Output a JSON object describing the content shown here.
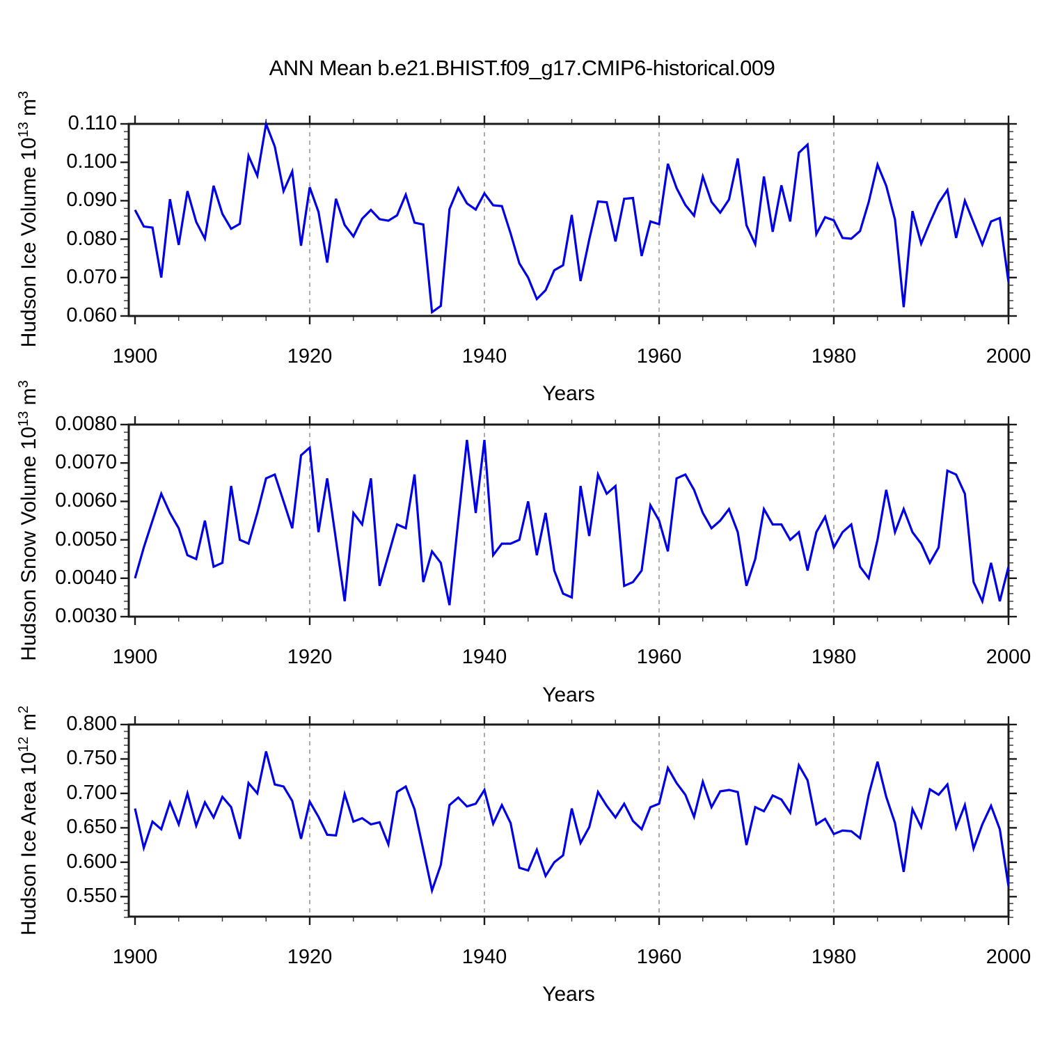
{
  "title": "ANN Mean b.e21.BHIST.f09_g17.CMIP6-historical.009",
  "colors": {
    "line": "#0000e6",
    "axis": "#1a1a1a",
    "grid": "#888888",
    "minor_tick": "#333333"
  },
  "x_tick_years": [
    1900,
    1920,
    1940,
    1960,
    1980,
    2000
  ],
  "x_tick_labels": [
    "1900",
    "1920",
    "1940",
    "1960",
    "1980",
    "2000"
  ],
  "years": [
    1900,
    1901,
    1902,
    1903,
    1904,
    1905,
    1906,
    1907,
    1908,
    1909,
    1910,
    1911,
    1912,
    1913,
    1914,
    1915,
    1916,
    1917,
    1918,
    1919,
    1920,
    1921,
    1922,
    1923,
    1924,
    1925,
    1926,
    1927,
    1928,
    1929,
    1930,
    1931,
    1932,
    1933,
    1934,
    1935,
    1936,
    1937,
    1938,
    1939,
    1940,
    1941,
    1942,
    1943,
    1944,
    1945,
    1946,
    1947,
    1948,
    1949,
    1950,
    1951,
    1952,
    1953,
    1954,
    1955,
    1956,
    1957,
    1958,
    1959,
    1960,
    1961,
    1962,
    1963,
    1964,
    1965,
    1966,
    1967,
    1968,
    1969,
    1970,
    1971,
    1972,
    1973,
    1974,
    1975,
    1976,
    1977,
    1978,
    1979,
    1980,
    1981,
    1982,
    1983,
    1984,
    1985,
    1986,
    1987,
    1988,
    1989,
    1990,
    1991,
    1992,
    1993,
    1994,
    1995,
    1996,
    1997,
    1998,
    1999,
    2000
  ],
  "chart_data": [
    {
      "type": "line",
      "title": "Hudson Ice Volume",
      "ylabel_parts": [
        {
          "t": "Hudson Ice Volume 10",
          "sup": false
        },
        {
          "t": "13",
          "sup": true
        },
        {
          "t": " m",
          "sup": false
        },
        {
          "t": "3",
          "sup": true
        }
      ],
      "xlabel": "Years",
      "xlim": [
        1899.3,
        2000
      ],
      "ylim": [
        0.06,
        0.11
      ],
      "ytick_values": [
        0.11,
        0.1,
        0.09,
        0.08,
        0.07,
        0.06
      ],
      "ytick_labels": [
        "0.110",
        "0.100",
        "0.090",
        "0.080",
        "0.070",
        "0.060"
      ],
      "ytick_minor_step": 0.002,
      "grid_x": [
        1920,
        1940,
        1960,
        1980
      ],
      "grid_on": false,
      "legend": "none",
      "values": [
        0.0876,
        0.0833,
        0.083,
        0.07,
        0.0904,
        0.0785,
        0.0925,
        0.0845,
        0.0801,
        0.0939,
        0.0866,
        0.0827,
        0.084,
        0.1017,
        0.0965,
        0.11,
        0.1041,
        0.0925,
        0.0976,
        0.0783,
        0.0935,
        0.0871,
        0.0739,
        0.0905,
        0.0837,
        0.0807,
        0.0853,
        0.0876,
        0.0852,
        0.0848,
        0.0862,
        0.0916,
        0.0843,
        0.0838,
        0.061,
        0.0626,
        0.0878,
        0.0933,
        0.0893,
        0.0877,
        0.0919,
        0.0888,
        0.0886,
        0.0815,
        0.0737,
        0.07,
        0.0644,
        0.0667,
        0.0719,
        0.0732,
        0.0863,
        0.0691,
        0.0799,
        0.0898,
        0.0896,
        0.0794,
        0.0905,
        0.0907,
        0.0756,
        0.0846,
        0.0839,
        0.0996,
        0.0933,
        0.0889,
        0.0861,
        0.0963,
        0.0897,
        0.0869,
        0.0903,
        0.101,
        0.0836,
        0.0787,
        0.0963,
        0.0819,
        0.094,
        0.0846,
        0.1025,
        0.1046,
        0.0813,
        0.0857,
        0.0849,
        0.0803,
        0.0801,
        0.0821,
        0.0897,
        0.0994,
        0.0939,
        0.0851,
        0.0623,
        0.0873,
        0.0788,
        0.0843,
        0.0894,
        0.0928,
        0.0803,
        0.09,
        0.0843,
        0.0786,
        0.0846,
        0.0855,
        0.0688
      ]
    },
    {
      "type": "line",
      "title": "Hudson Snow Volume",
      "ylabel_parts": [
        {
          "t": "Hudson Snow Volume 10",
          "sup": false
        },
        {
          "t": "13",
          "sup": true
        },
        {
          "t": " m",
          "sup": false
        },
        {
          "t": "3",
          "sup": true
        }
      ],
      "xlabel": "Years",
      "xlim": [
        1899.3,
        2000
      ],
      "ylim": [
        0.003,
        0.008
      ],
      "ytick_values": [
        0.008,
        0.007,
        0.006,
        0.005,
        0.004,
        0.003
      ],
      "ytick_labels": [
        "0.0080",
        "0.0070",
        "0.0060",
        "0.0050",
        "0.0040",
        "0.0030"
      ],
      "ytick_minor_step": 0.0002,
      "grid_x": [
        1920,
        1940,
        1960,
        1980
      ],
      "grid_on": false,
      "legend": "none",
      "values": [
        0.004,
        0.0048,
        0.0055,
        0.0062,
        0.0057,
        0.0053,
        0.0046,
        0.0045,
        0.0055,
        0.0043,
        0.0044,
        0.0064,
        0.005,
        0.0049,
        0.0057,
        0.0066,
        0.0067,
        0.006,
        0.0053,
        0.0072,
        0.0074,
        0.0052,
        0.0066,
        0.005,
        0.0034,
        0.0057,
        0.0054,
        0.0066,
        0.0038,
        0.0046,
        0.0054,
        0.0053,
        0.0067,
        0.0039,
        0.0047,
        0.0044,
        0.0033,
        0.0055,
        0.0076,
        0.0057,
        0.0076,
        0.0046,
        0.0049,
        0.0049,
        0.005,
        0.006,
        0.0046,
        0.0057,
        0.0042,
        0.0036,
        0.0035,
        0.0064,
        0.0051,
        0.0067,
        0.0062,
        0.0064,
        0.0038,
        0.0039,
        0.0042,
        0.0059,
        0.0055,
        0.0047,
        0.0066,
        0.0067,
        0.0063,
        0.0057,
        0.0053,
        0.0055,
        0.0058,
        0.0052,
        0.0038,
        0.0045,
        0.0058,
        0.0054,
        0.0054,
        0.005,
        0.0052,
        0.0042,
        0.0052,
        0.0056,
        0.0048,
        0.0052,
        0.0054,
        0.0043,
        0.004,
        0.005,
        0.0063,
        0.0052,
        0.0058,
        0.0052,
        0.0049,
        0.0044,
        0.0048,
        0.0068,
        0.0067,
        0.0062,
        0.0039,
        0.0034,
        0.0044,
        0.0034,
        0.0043
      ]
    },
    {
      "type": "line",
      "title": "Hudson Ice Area",
      "ylabel_parts": [
        {
          "t": "Hudson Ice Area 10",
          "sup": false
        },
        {
          "t": "12",
          "sup": true
        },
        {
          "t": " m",
          "sup": false
        },
        {
          "t": "2",
          "sup": true
        }
      ],
      "xlabel": "Years",
      "xlim": [
        1899.3,
        2000
      ],
      "ylim": [
        0.521,
        0.8
      ],
      "ytick_values": [
        0.8,
        0.75,
        0.7,
        0.65,
        0.6,
        0.55
      ],
      "ytick_labels": [
        "0.800",
        "0.750",
        "0.700",
        "0.650",
        "0.600",
        "0.550"
      ],
      "ytick_minor_step": 0.01,
      "grid_x": [
        1920,
        1940,
        1960,
        1980
      ],
      "grid_on": false,
      "legend": "none",
      "values": [
        0.678,
        0.621,
        0.659,
        0.648,
        0.687,
        0.655,
        0.7,
        0.653,
        0.687,
        0.665,
        0.695,
        0.68,
        0.634,
        0.715,
        0.7,
        0.761,
        0.713,
        0.71,
        0.689,
        0.634,
        0.688,
        0.666,
        0.64,
        0.639,
        0.699,
        0.659,
        0.664,
        0.655,
        0.658,
        0.626,
        0.702,
        0.71,
        0.677,
        0.618,
        0.559,
        0.596,
        0.683,
        0.694,
        0.681,
        0.685,
        0.705,
        0.656,
        0.683,
        0.657,
        0.592,
        0.588,
        0.618,
        0.58,
        0.6,
        0.61,
        0.678,
        0.628,
        0.651,
        0.702,
        0.682,
        0.665,
        0.685,
        0.66,
        0.648,
        0.68,
        0.685,
        0.737,
        0.715,
        0.698,
        0.666,
        0.717,
        0.68,
        0.703,
        0.705,
        0.702,
        0.625,
        0.68,
        0.674,
        0.697,
        0.691,
        0.672,
        0.741,
        0.719,
        0.655,
        0.663,
        0.641,
        0.646,
        0.645,
        0.635,
        0.698,
        0.746,
        0.695,
        0.657,
        0.586,
        0.677,
        0.651,
        0.706,
        0.698,
        0.713,
        0.65,
        0.683,
        0.62,
        0.655,
        0.682,
        0.648,
        0.565
      ]
    }
  ]
}
